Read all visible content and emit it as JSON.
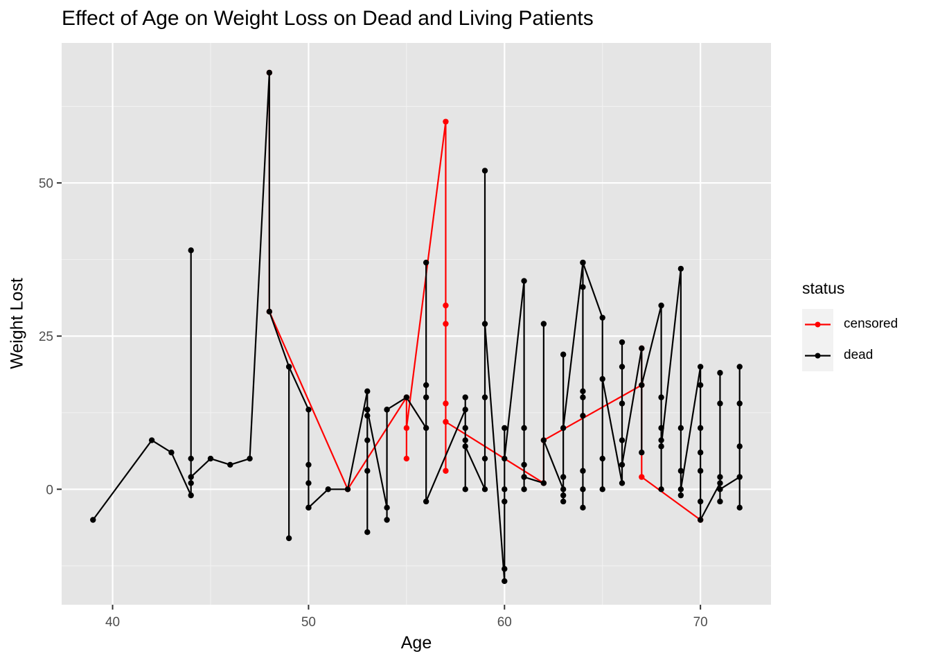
{
  "chart_data": {
    "type": "line",
    "title": "Effect of Age on Weight Loss on Dead and Living Patients",
    "xlabel": "Age",
    "ylabel": "Weight Lost",
    "xlim": [
      37.4,
      73.6
    ],
    "ylim": [
      -18.85,
      72.85
    ],
    "xticks": [
      40,
      50,
      60,
      70
    ],
    "yticks": [
      0,
      25,
      50
    ],
    "x_minor_ticks": [
      45,
      55,
      65
    ],
    "y_minor_ticks": [
      -12.5,
      12.5,
      37.5,
      62.5
    ],
    "grid": true,
    "legend": {
      "title": "status",
      "position": "right",
      "entries": [
        "censored",
        "dead"
      ]
    },
    "series": [
      {
        "name": "censored",
        "color": "#ff0000",
        "points": [
          [
            48,
            68
          ],
          [
            48,
            29
          ],
          [
            52,
            0
          ],
          [
            55,
            15
          ],
          [
            55,
            5
          ],
          [
            55,
            10
          ],
          [
            57,
            60
          ],
          [
            57,
            30
          ],
          [
            57,
            27
          ],
          [
            57,
            14
          ],
          [
            57,
            3
          ],
          [
            57,
            11
          ],
          [
            62,
            1
          ],
          [
            62,
            8
          ],
          [
            67,
            17
          ],
          [
            67,
            23
          ],
          [
            67,
            2
          ],
          [
            70,
            -5
          ]
        ]
      },
      {
        "name": "dead",
        "color": "#000000",
        "points": [
          [
            39,
            -5
          ],
          [
            42,
            8
          ],
          [
            43,
            6
          ],
          [
            44,
            -1
          ],
          [
            44,
            39
          ],
          [
            44,
            5
          ],
          [
            44,
            1
          ],
          [
            44,
            2
          ],
          [
            45,
            5
          ],
          [
            46,
            4
          ],
          [
            47,
            5
          ],
          [
            48,
            68
          ],
          [
            48,
            29
          ],
          [
            49,
            20
          ],
          [
            49,
            -8
          ],
          [
            49,
            20
          ],
          [
            50,
            13
          ],
          [
            50,
            -3
          ],
          [
            50,
            4
          ],
          [
            50,
            1
          ],
          [
            50,
            -3
          ],
          [
            51,
            0
          ],
          [
            52,
            0
          ],
          [
            53,
            16
          ],
          [
            53,
            -7
          ],
          [
            53,
            13
          ],
          [
            53,
            12
          ],
          [
            53,
            8
          ],
          [
            53,
            3
          ],
          [
            53,
            13
          ],
          [
            54,
            -3
          ],
          [
            54,
            13
          ],
          [
            54,
            -5
          ],
          [
            54,
            13
          ],
          [
            55,
            15
          ],
          [
            56,
            10
          ],
          [
            56,
            37
          ],
          [
            56,
            17
          ],
          [
            56,
            15
          ],
          [
            56,
            -2
          ],
          [
            58,
            13
          ],
          [
            58,
            0
          ],
          [
            58,
            15
          ],
          [
            58,
            10
          ],
          [
            58,
            8
          ],
          [
            58,
            7
          ],
          [
            59,
            0
          ],
          [
            59,
            52
          ],
          [
            59,
            15
          ],
          [
            59,
            5
          ],
          [
            59,
            27
          ],
          [
            60,
            -15
          ],
          [
            60,
            10
          ],
          [
            60,
            0
          ],
          [
            60,
            -2
          ],
          [
            60,
            -13
          ],
          [
            60,
            5
          ],
          [
            61,
            34
          ],
          [
            61,
            10
          ],
          [
            61,
            4
          ],
          [
            61,
            0
          ],
          [
            61,
            2
          ],
          [
            62,
            1
          ],
          [
            62,
            27
          ],
          [
            62,
            8
          ],
          [
            63,
            0
          ],
          [
            63,
            22
          ],
          [
            63,
            -2
          ],
          [
            63,
            2
          ],
          [
            63,
            -1
          ],
          [
            63,
            10
          ],
          [
            64,
            37
          ],
          [
            64,
            33
          ],
          [
            64,
            16
          ],
          [
            64,
            15
          ],
          [
            64,
            3
          ],
          [
            64,
            0
          ],
          [
            64,
            -3
          ],
          [
            64,
            12
          ],
          [
            64,
            37
          ],
          [
            65,
            28
          ],
          [
            65,
            0
          ],
          [
            65,
            5
          ],
          [
            65,
            18
          ],
          [
            66,
            1
          ],
          [
            66,
            24
          ],
          [
            66,
            20
          ],
          [
            66,
            14
          ],
          [
            66,
            8
          ],
          [
            66,
            4
          ],
          [
            67,
            23
          ],
          [
            67,
            6
          ],
          [
            67,
            17
          ],
          [
            68,
            30
          ],
          [
            68,
            0
          ],
          [
            68,
            15
          ],
          [
            68,
            10
          ],
          [
            68,
            8
          ],
          [
            68,
            7
          ],
          [
            69,
            36
          ],
          [
            69,
            -1
          ],
          [
            69,
            10
          ],
          [
            69,
            3
          ],
          [
            69,
            0
          ],
          [
            70,
            20
          ],
          [
            70,
            17
          ],
          [
            70,
            10
          ],
          [
            70,
            6
          ],
          [
            70,
            3
          ],
          [
            70,
            -2
          ],
          [
            70,
            -5
          ],
          [
            71,
            1
          ],
          [
            71,
            19
          ],
          [
            71,
            -2
          ],
          [
            71,
            14
          ],
          [
            71,
            2
          ],
          [
            71,
            0
          ],
          [
            72,
            2
          ],
          [
            72,
            20
          ],
          [
            72,
            14
          ],
          [
            72,
            7
          ],
          [
            72,
            -3
          ]
        ]
      }
    ]
  }
}
